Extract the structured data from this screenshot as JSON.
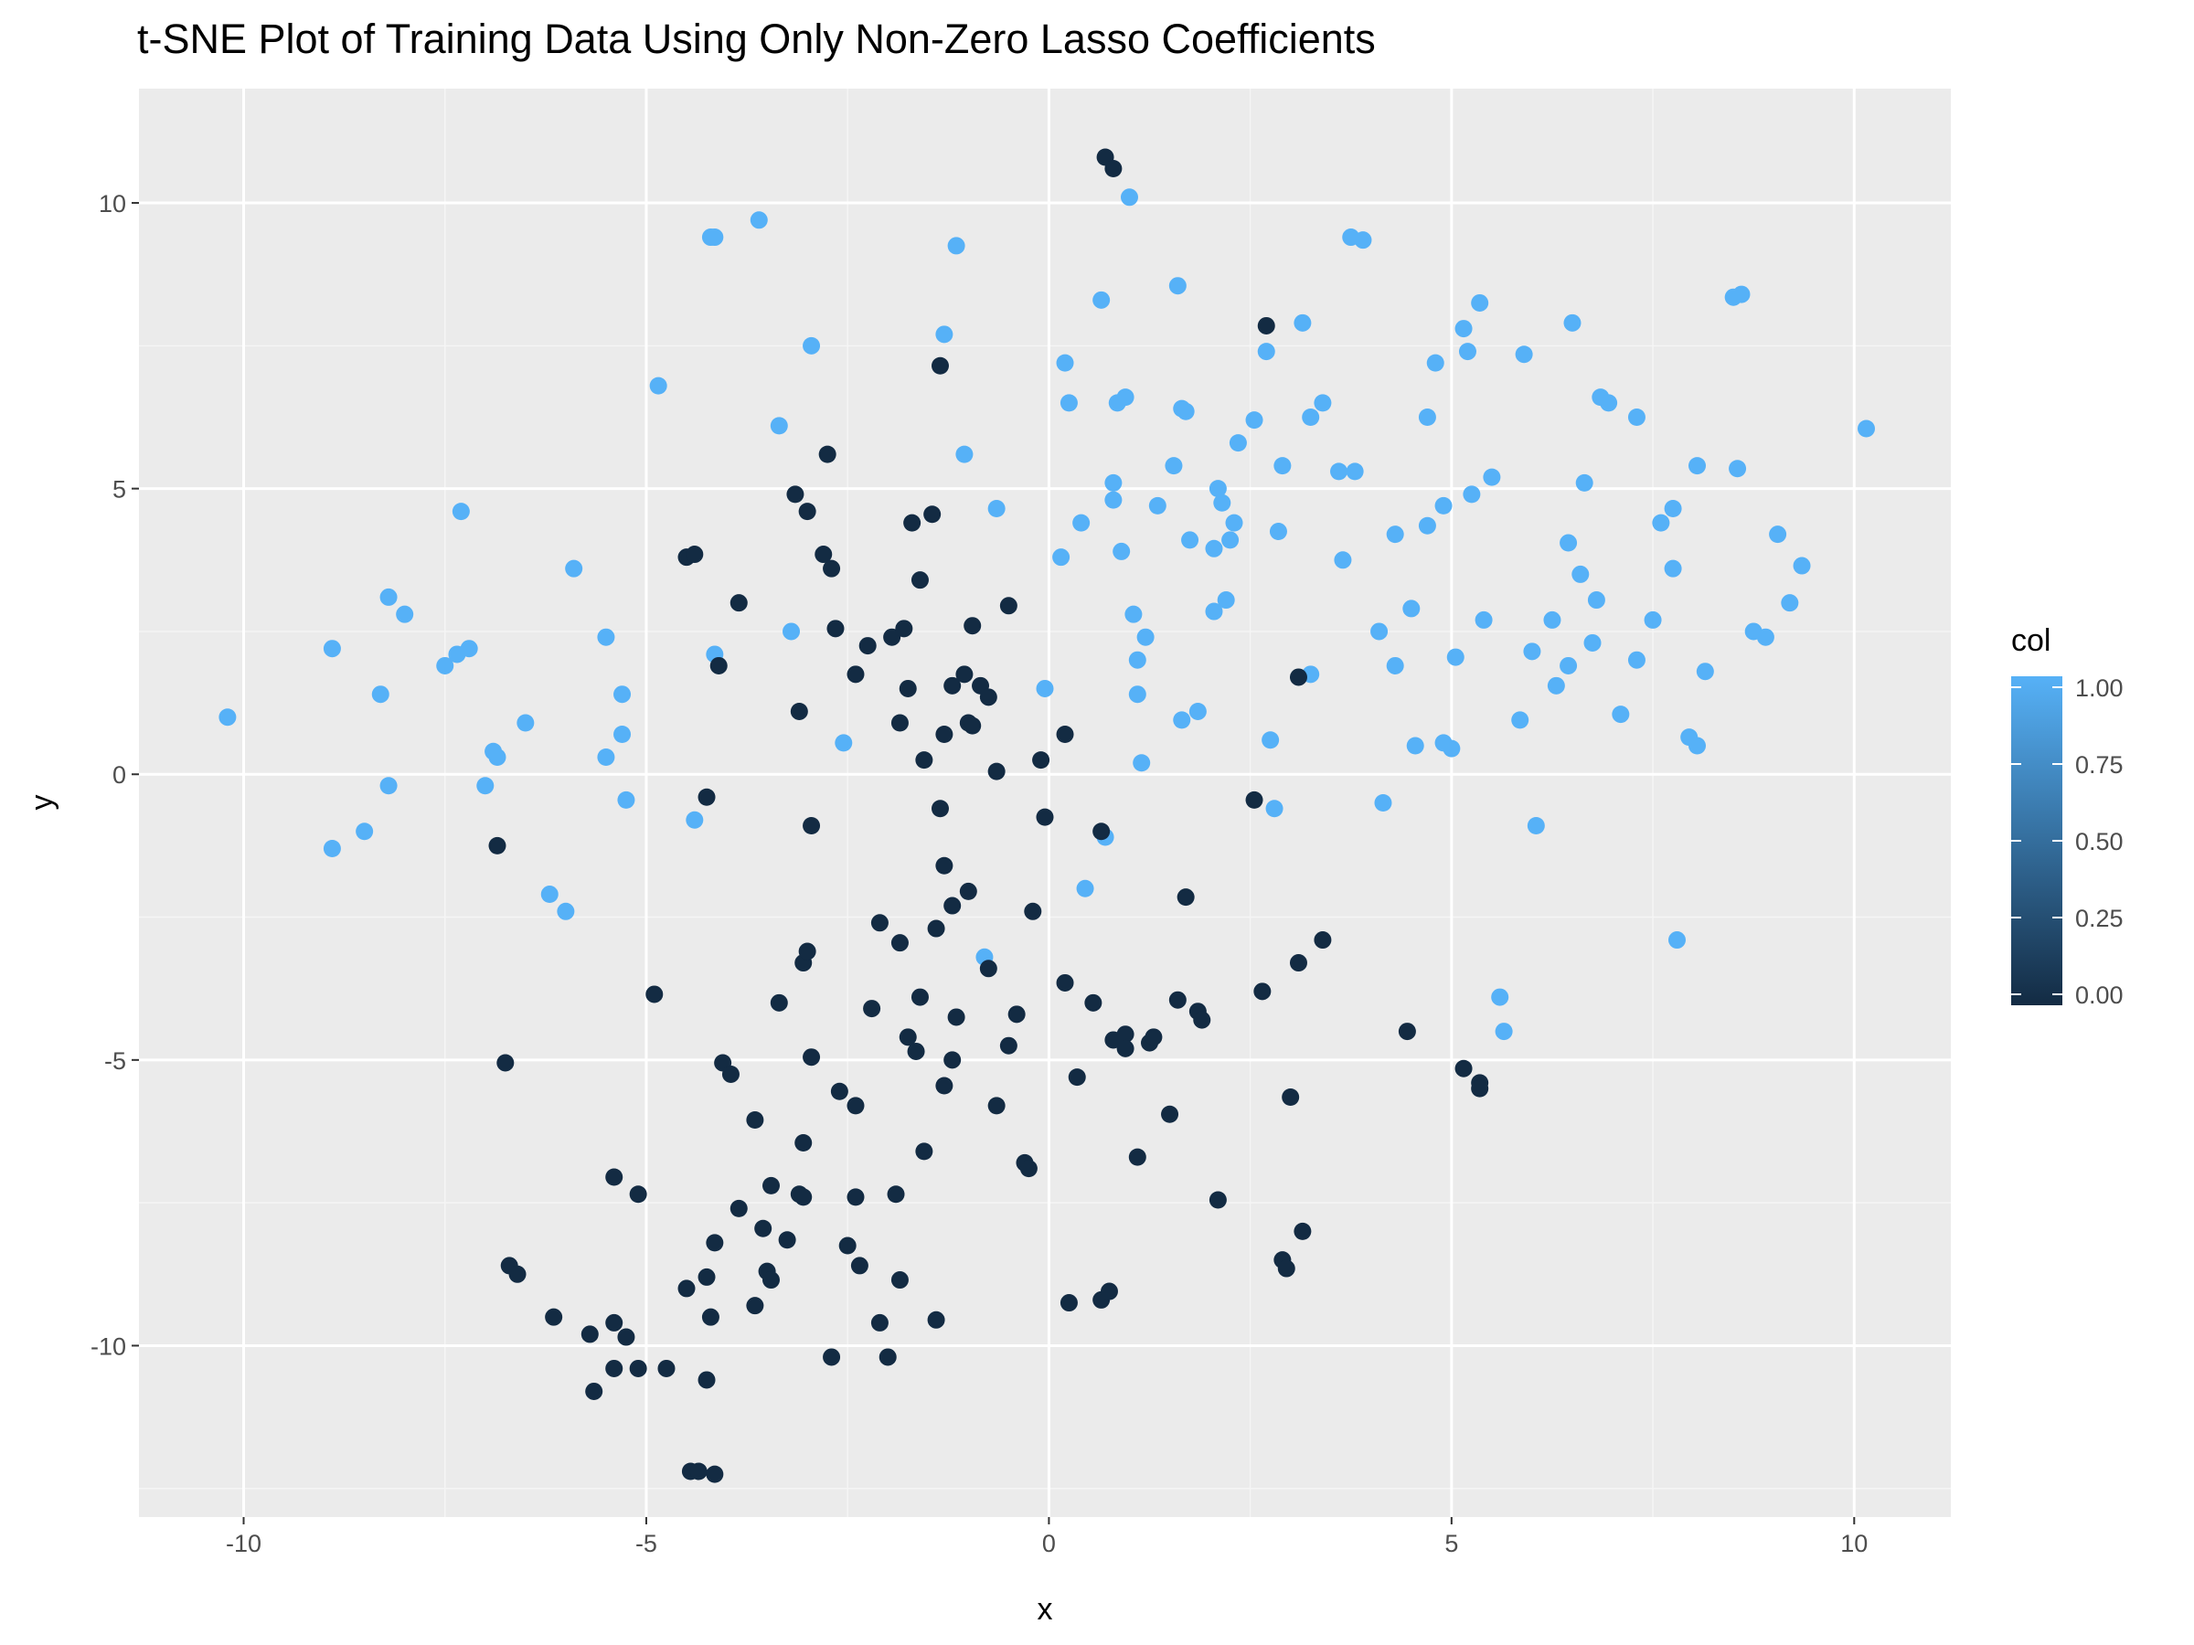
{
  "chart_data": {
    "type": "scatter",
    "title": "t-SNE Plot of Training Data Using Only Non-Zero Lasso Coefficients",
    "xlabel": "x",
    "ylabel": "y",
    "xlim": [
      -11.3,
      11.2
    ],
    "ylim": [
      -13.0,
      12.0
    ],
    "x_ticks": [
      -10,
      -5,
      0,
      5,
      10
    ],
    "x_tick_labels": [
      "-10",
      "-5",
      "0",
      "5",
      "10"
    ],
    "y_ticks": [
      -10,
      -5,
      0,
      5,
      10
    ],
    "y_tick_labels": [
      "-10",
      "-5",
      "0",
      "5",
      "10"
    ],
    "grid": true,
    "legend": {
      "title": "col",
      "placement": "right",
      "ticks": [
        0.0,
        0.25,
        0.5,
        0.75,
        1.0
      ],
      "tick_labels": [
        "0.00",
        "0.25",
        "0.50",
        "0.75",
        "1.00"
      ],
      "color_low": "#132B43",
      "color_high": "#56B1F7"
    },
    "colors": {
      "panel_background": "#EBEBEB",
      "grid_major": "#FFFFFF",
      "grid_minor": "#F5F5F5",
      "col_0": "#132B43",
      "col_1": "#56B1F7"
    },
    "points": [
      [
        -10.2,
        1.0,
        1
      ],
      [
        -8.9,
        2.2,
        1
      ],
      [
        -8.9,
        -1.3,
        1
      ],
      [
        -8.5,
        -1.0,
        1
      ],
      [
        -8.3,
        1.4,
        1
      ],
      [
        -8.2,
        3.1,
        1
      ],
      [
        -8.2,
        -0.2,
        1
      ],
      [
        -8.0,
        2.8,
        1
      ],
      [
        -7.5,
        1.9,
        1
      ],
      [
        -7.35,
        2.1,
        1
      ],
      [
        -7.3,
        4.6,
        1
      ],
      [
        -7.2,
        2.2,
        1
      ],
      [
        -7.0,
        -0.2,
        1
      ],
      [
        -6.9,
        0.4,
        1
      ],
      [
        -6.85,
        0.3,
        1
      ],
      [
        -6.5,
        0.9,
        1
      ],
      [
        -6.2,
        -2.1,
        1
      ],
      [
        -6.0,
        -2.4,
        1
      ],
      [
        -5.9,
        3.6,
        1
      ],
      [
        -5.5,
        2.4,
        1
      ],
      [
        -5.5,
        0.3,
        1
      ],
      [
        -5.3,
        1.4,
        1
      ],
      [
        -5.3,
        0.7,
        1
      ],
      [
        -5.25,
        -0.45,
        1
      ],
      [
        -4.85,
        6.8,
        1
      ],
      [
        -4.4,
        -0.8,
        1
      ],
      [
        -4.2,
        9.4,
        1
      ],
      [
        -4.15,
        9.4,
        1
      ],
      [
        -4.15,
        2.1,
        1
      ],
      [
        -3.6,
        9.7,
        1
      ],
      [
        -3.35,
        6.1,
        1
      ],
      [
        -3.2,
        2.5,
        1
      ],
      [
        -2.95,
        7.5,
        1
      ],
      [
        -2.55,
        0.55,
        1
      ],
      [
        -1.15,
        9.25,
        1
      ],
      [
        -1.3,
        7.7,
        1
      ],
      [
        -1.05,
        5.6,
        1
      ],
      [
        -0.65,
        4.65,
        1
      ],
      [
        -0.8,
        -3.2,
        1
      ],
      [
        -0.05,
        1.5,
        1
      ],
      [
        0.2,
        7.2,
        1
      ],
      [
        0.25,
        6.5,
        1
      ],
      [
        0.15,
        3.8,
        1
      ],
      [
        0.4,
        4.4,
        1
      ],
      [
        0.45,
        -2.0,
        1
      ],
      [
        0.65,
        8.3,
        1
      ],
      [
        0.7,
        -1.1,
        1
      ],
      [
        0.8,
        5.1,
        1
      ],
      [
        0.8,
        4.8,
        1
      ],
      [
        0.85,
        6.5,
        1
      ],
      [
        0.9,
        3.9,
        1
      ],
      [
        0.95,
        6.6,
        1
      ],
      [
        1.0,
        10.1,
        1
      ],
      [
        1.05,
        2.8,
        1
      ],
      [
        1.1,
        2.0,
        1
      ],
      [
        1.1,
        1.4,
        1
      ],
      [
        1.2,
        2.4,
        1
      ],
      [
        1.15,
        0.2,
        1
      ],
      [
        1.35,
        4.7,
        1
      ],
      [
        1.55,
        5.4,
        1
      ],
      [
        1.6,
        8.55,
        1
      ],
      [
        1.65,
        6.4,
        1
      ],
      [
        1.7,
        6.35,
        1
      ],
      [
        1.65,
        0.95,
        1
      ],
      [
        1.75,
        4.1,
        1
      ],
      [
        1.85,
        1.1,
        1
      ],
      [
        2.05,
        3.95,
        1
      ],
      [
        2.1,
        5.0,
        1
      ],
      [
        2.15,
        4.75,
        1
      ],
      [
        2.05,
        2.85,
        1
      ],
      [
        2.2,
        3.05,
        1
      ],
      [
        2.25,
        4.1,
        1
      ],
      [
        2.3,
        4.4,
        1
      ],
      [
        2.35,
        5.8,
        1
      ],
      [
        2.55,
        6.2,
        1
      ],
      [
        2.7,
        7.4,
        1
      ],
      [
        2.75,
        0.6,
        1
      ],
      [
        2.85,
        4.25,
        1
      ],
      [
        2.9,
        5.4,
        1
      ],
      [
        2.8,
        -0.6,
        1
      ],
      [
        3.15,
        7.9,
        1
      ],
      [
        3.25,
        6.25,
        1
      ],
      [
        3.25,
        1.75,
        1
      ],
      [
        3.4,
        6.5,
        1
      ],
      [
        3.6,
        5.3,
        1
      ],
      [
        3.65,
        3.75,
        1
      ],
      [
        3.75,
        9.4,
        1
      ],
      [
        3.8,
        5.3,
        1
      ],
      [
        3.9,
        9.35,
        1
      ],
      [
        4.1,
        2.5,
        1
      ],
      [
        4.15,
        -0.5,
        1
      ],
      [
        4.3,
        1.9,
        1
      ],
      [
        4.3,
        4.2,
        1
      ],
      [
        4.5,
        2.9,
        1
      ],
      [
        4.55,
        0.5,
        1
      ],
      [
        4.7,
        6.25,
        1
      ],
      [
        4.7,
        4.35,
        1
      ],
      [
        4.8,
        7.2,
        1
      ],
      [
        4.9,
        4.7,
        1
      ],
      [
        4.9,
        0.55,
        1
      ],
      [
        5.0,
        0.45,
        1
      ],
      [
        5.05,
        2.05,
        1
      ],
      [
        5.15,
        7.8,
        1
      ],
      [
        5.2,
        7.4,
        1
      ],
      [
        5.25,
        4.9,
        1
      ],
      [
        5.35,
        8.25,
        1
      ],
      [
        5.4,
        2.7,
        1
      ],
      [
        5.5,
        5.2,
        1
      ],
      [
        5.6,
        -3.9,
        1
      ],
      [
        5.65,
        -4.5,
        1
      ],
      [
        5.85,
        0.95,
        1
      ],
      [
        5.9,
        7.35,
        1
      ],
      [
        6.0,
        2.15,
        1
      ],
      [
        6.05,
        -0.9,
        1
      ],
      [
        6.25,
        2.7,
        1
      ],
      [
        6.3,
        1.55,
        1
      ],
      [
        6.45,
        1.9,
        1
      ],
      [
        6.45,
        4.05,
        1
      ],
      [
        6.5,
        7.9,
        1
      ],
      [
        6.6,
        3.5,
        1
      ],
      [
        6.65,
        5.1,
        1
      ],
      [
        6.75,
        2.3,
        1
      ],
      [
        6.8,
        3.05,
        1
      ],
      [
        6.85,
        6.6,
        1
      ],
      [
        6.95,
        6.5,
        1
      ],
      [
        7.1,
        1.05,
        1
      ],
      [
        7.3,
        6.25,
        1
      ],
      [
        7.3,
        2.0,
        1
      ],
      [
        7.5,
        2.7,
        1
      ],
      [
        7.6,
        4.4,
        1
      ],
      [
        7.75,
        3.6,
        1
      ],
      [
        7.75,
        4.65,
        1
      ],
      [
        7.8,
        -2.9,
        1
      ],
      [
        7.95,
        0.65,
        1
      ],
      [
        8.05,
        0.5,
        1
      ],
      [
        8.05,
        5.4,
        1
      ],
      [
        8.15,
        1.8,
        1
      ],
      [
        8.5,
        8.35,
        1
      ],
      [
        8.6,
        8.4,
        1
      ],
      [
        8.55,
        5.35,
        1
      ],
      [
        8.75,
        2.5,
        1
      ],
      [
        8.9,
        2.4,
        1
      ],
      [
        9.05,
        4.2,
        1
      ],
      [
        9.2,
        3.0,
        1
      ],
      [
        9.35,
        3.65,
        1
      ],
      [
        10.15,
        6.05,
        1
      ],
      [
        -6.85,
        -1.25,
        0
      ],
      [
        -6.75,
        -5.05,
        0
      ],
      [
        -6.7,
        -8.6,
        0
      ],
      [
        -6.6,
        -8.75,
        0
      ],
      [
        -6.15,
        -9.5,
        0
      ],
      [
        -5.7,
        -9.8,
        0
      ],
      [
        -5.65,
        -10.8,
        0
      ],
      [
        -5.4,
        -10.4,
        0
      ],
      [
        -5.4,
        -9.6,
        0
      ],
      [
        -5.4,
        -7.05,
        0
      ],
      [
        -5.25,
        -9.85,
        0
      ],
      [
        -5.1,
        -10.4,
        0
      ],
      [
        -5.1,
        -7.35,
        0
      ],
      [
        -4.9,
        -3.85,
        0
      ],
      [
        -4.75,
        -10.4,
        0
      ],
      [
        -4.5,
        -9.0,
        0
      ],
      [
        -4.45,
        -12.2,
        0
      ],
      [
        -4.35,
        -12.2,
        0
      ],
      [
        -4.25,
        -10.6,
        0
      ],
      [
        -4.25,
        -8.8,
        0
      ],
      [
        -4.2,
        -9.5,
        0
      ],
      [
        -4.15,
        -12.25,
        0
      ],
      [
        -4.15,
        -8.2,
        0
      ],
      [
        -4.25,
        -0.4,
        0
      ],
      [
        -4.1,
        1.9,
        0
      ],
      [
        -4.5,
        3.8,
        0
      ],
      [
        -4.4,
        3.85,
        0
      ],
      [
        -4.05,
        -5.05,
        0
      ],
      [
        -3.95,
        -5.25,
        0
      ],
      [
        -3.85,
        3.0,
        0
      ],
      [
        -3.85,
        -7.6,
        0
      ],
      [
        -3.65,
        -9.3,
        0
      ],
      [
        -3.65,
        -6.05,
        0
      ],
      [
        -3.55,
        -7.95,
        0
      ],
      [
        -3.5,
        -8.7,
        0
      ],
      [
        -3.45,
        -8.85,
        0
      ],
      [
        -3.45,
        -7.2,
        0
      ],
      [
        -3.35,
        -4.0,
        0
      ],
      [
        -3.25,
        -8.15,
        0
      ],
      [
        -3.15,
        4.9,
        0
      ],
      [
        -3.1,
        1.1,
        0
      ],
      [
        -3.1,
        -7.35,
        0
      ],
      [
        -3.05,
        -7.4,
        0
      ],
      [
        -3.05,
        -3.3,
        0
      ],
      [
        -3.05,
        -6.45,
        0
      ],
      [
        -3.0,
        4.6,
        0
      ],
      [
        -3.0,
        -3.1,
        0
      ],
      [
        -2.95,
        -4.95,
        0
      ],
      [
        -2.95,
        -0.9,
        0
      ],
      [
        -2.8,
        3.85,
        0
      ],
      [
        -2.75,
        5.6,
        0
      ],
      [
        -2.7,
        3.6,
        0
      ],
      [
        -2.7,
        -10.2,
        0
      ],
      [
        -2.65,
        2.55,
        0
      ],
      [
        -2.6,
        -5.55,
        0
      ],
      [
        -2.5,
        -8.25,
        0
      ],
      [
        -2.4,
        1.75,
        0
      ],
      [
        -2.4,
        -5.8,
        0
      ],
      [
        -2.4,
        -7.4,
        0
      ],
      [
        -2.35,
        -8.6,
        0
      ],
      [
        -2.25,
        2.25,
        0
      ],
      [
        -2.2,
        -4.1,
        0
      ],
      [
        -2.1,
        -9.6,
        0
      ],
      [
        -2.1,
        -2.6,
        0
      ],
      [
        -2.0,
        -10.2,
        0
      ],
      [
        -1.95,
        2.4,
        0
      ],
      [
        -1.9,
        -7.35,
        0
      ],
      [
        -1.85,
        -8.85,
        0
      ],
      [
        -1.85,
        0.9,
        0
      ],
      [
        -1.85,
        -2.95,
        0
      ],
      [
        -1.8,
        2.55,
        0
      ],
      [
        -1.75,
        1.5,
        0
      ],
      [
        -1.75,
        -4.6,
        0
      ],
      [
        -1.7,
        4.4,
        0
      ],
      [
        -1.65,
        -4.85,
        0
      ],
      [
        -1.6,
        -3.9,
        0
      ],
      [
        -1.6,
        3.4,
        0
      ],
      [
        -1.55,
        0.25,
        0
      ],
      [
        -1.55,
        -6.6,
        0
      ],
      [
        -1.45,
        4.55,
        0
      ],
      [
        -1.4,
        -2.7,
        0
      ],
      [
        -1.4,
        -9.55,
        0
      ],
      [
        -1.35,
        7.15,
        0
      ],
      [
        -1.35,
        -0.6,
        0
      ],
      [
        -1.3,
        -1.6,
        0
      ],
      [
        -1.3,
        -5.45,
        0
      ],
      [
        -1.3,
        0.7,
        0
      ],
      [
        -1.2,
        1.55,
        0
      ],
      [
        -1.2,
        -2.3,
        0
      ],
      [
        -1.2,
        -5.0,
        0
      ],
      [
        -1.15,
        -4.25,
        0
      ],
      [
        -1.05,
        1.75,
        0
      ],
      [
        -1.0,
        0.9,
        0
      ],
      [
        -1.0,
        -2.05,
        0
      ],
      [
        -0.95,
        2.6,
        0
      ],
      [
        -0.95,
        0.85,
        0
      ],
      [
        -0.85,
        1.55,
        0
      ],
      [
        -0.75,
        -3.4,
        0
      ],
      [
        -0.75,
        1.35,
        0
      ],
      [
        -0.65,
        0.05,
        0
      ],
      [
        -0.65,
        -5.8,
        0
      ],
      [
        -0.5,
        2.95,
        0
      ],
      [
        -0.5,
        -4.75,
        0
      ],
      [
        -0.4,
        -4.2,
        0
      ],
      [
        -0.3,
        -6.8,
        0
      ],
      [
        -0.25,
        -6.9,
        0
      ],
      [
        -0.2,
        -2.4,
        0
      ],
      [
        -0.1,
        0.25,
        0
      ],
      [
        -0.05,
        -0.75,
        0
      ],
      [
        0.2,
        -3.65,
        0
      ],
      [
        0.2,
        0.7,
        0
      ],
      [
        0.25,
        -9.25,
        0
      ],
      [
        0.35,
        -5.3,
        0
      ],
      [
        0.55,
        -4.0,
        0
      ],
      [
        0.65,
        -9.2,
        0
      ],
      [
        0.65,
        -1.0,
        0
      ],
      [
        0.7,
        10.8,
        0
      ],
      [
        0.75,
        -9.05,
        0
      ],
      [
        0.8,
        10.6,
        0
      ],
      [
        0.8,
        -4.65,
        0
      ],
      [
        0.95,
        -4.55,
        0
      ],
      [
        0.95,
        -4.8,
        0
      ],
      [
        1.1,
        -6.7,
        0
      ],
      [
        1.25,
        -4.7,
        0
      ],
      [
        1.3,
        -4.6,
        0
      ],
      [
        1.5,
        -5.95,
        0
      ],
      [
        1.6,
        -3.95,
        0
      ],
      [
        1.7,
        -2.15,
        0
      ],
      [
        1.85,
        -4.15,
        0
      ],
      [
        1.9,
        -4.3,
        0
      ],
      [
        2.1,
        -7.45,
        0
      ],
      [
        2.55,
        -0.45,
        0
      ],
      [
        2.65,
        -3.8,
        0
      ],
      [
        2.7,
        7.85,
        0
      ],
      [
        2.9,
        -8.5,
        0
      ],
      [
        2.95,
        -8.65,
        0
      ],
      [
        3.0,
        -5.65,
        0
      ],
      [
        3.1,
        -3.3,
        0
      ],
      [
        3.1,
        1.7,
        0
      ],
      [
        3.15,
        -8.0,
        0
      ],
      [
        3.4,
        -2.9,
        0
      ],
      [
        4.45,
        -4.5,
        0
      ],
      [
        5.15,
        -5.15,
        0
      ],
      [
        5.35,
        -5.4,
        0
      ],
      [
        5.35,
        -5.5,
        0
      ]
    ]
  }
}
